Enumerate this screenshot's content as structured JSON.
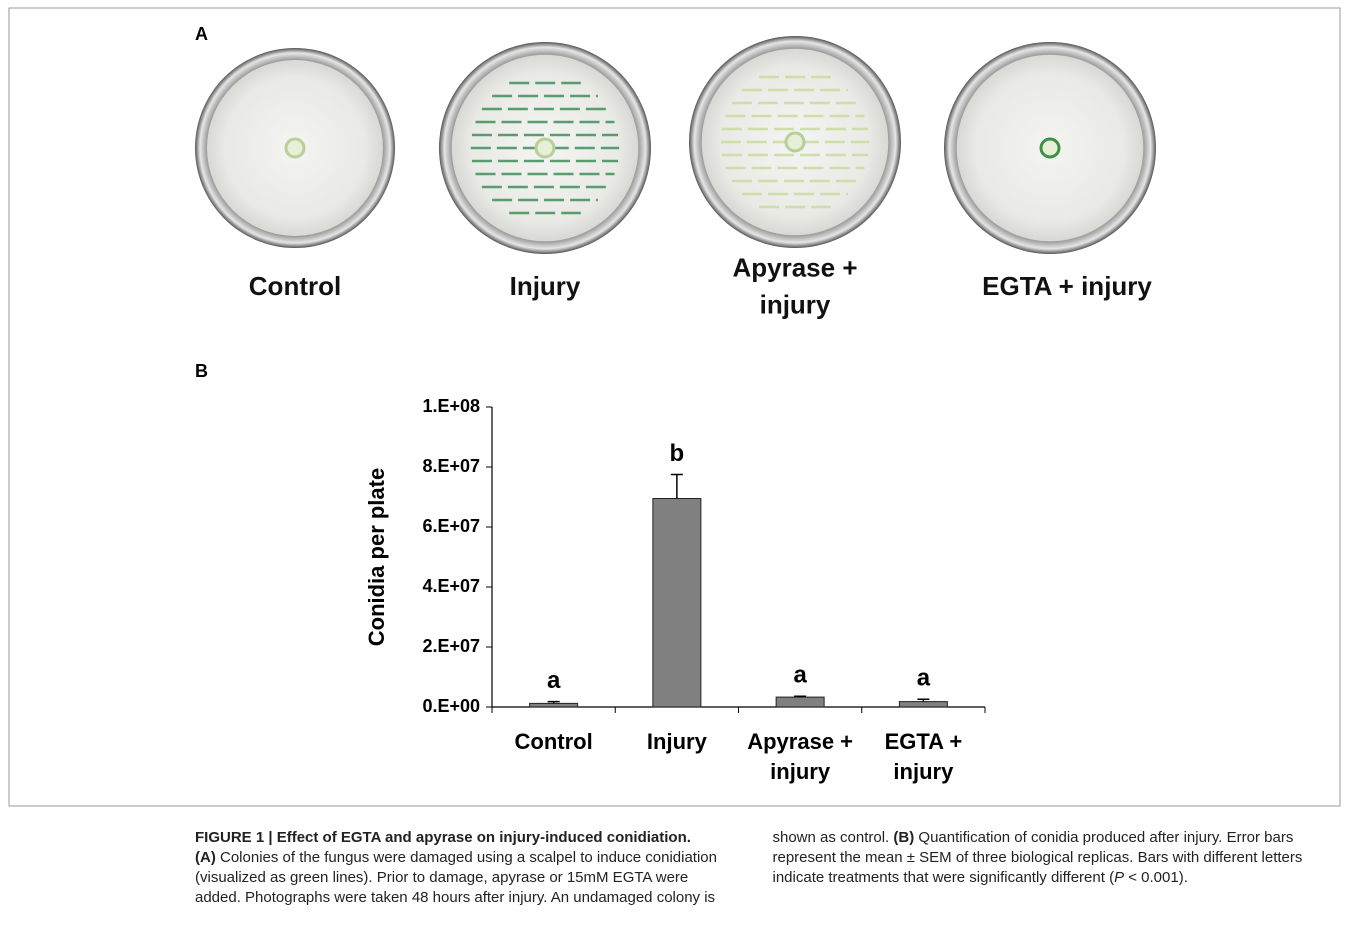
{
  "panel_a": {
    "label": "A",
    "plates": [
      "Control",
      "Injury",
      "Apyrase +\ninjury",
      "EGTA + injury"
    ]
  },
  "panel_b": {
    "label": "B"
  },
  "chart_data": {
    "type": "bar",
    "ylabel": "Conidia per plate",
    "categories": [
      "Control",
      "Injury",
      "Apyrase +\ninjury",
      "EGTA +\ninjury"
    ],
    "values": [
      1200000,
      69500000,
      3300000,
      1800000
    ],
    "errors": [
      600000,
      8000000,
      300000,
      800000
    ],
    "annotations": [
      "a",
      "b",
      "a",
      "a"
    ],
    "color": "#808080",
    "ylim": [
      0,
      100000000
    ],
    "yticks": [
      {
        "value": 0,
        "label": "0.E+00"
      },
      {
        "value": 20000000,
        "label": "2.E+07"
      },
      {
        "value": 40000000,
        "label": "4.E+07"
      },
      {
        "value": 60000000,
        "label": "6.E+07"
      },
      {
        "value": 80000000,
        "label": "8.E+07"
      },
      {
        "value": 100000000,
        "label": "1.E+08"
      }
    ],
    "grid": false
  },
  "caption": {
    "parts": [
      "FIGURE 1 | Effect of EGTA and apyrase on injury-induced conidiation.",
      "(A)",
      " Colonies of the fungus were damaged using a scalpel to induce conidiation (visualized as green lines). Prior to damage, apyrase or 15mM EGTA were added. Photographs were taken 48 hours after injury. An undamaged colony is shown as control. ",
      "(B)",
      " Quantification of conidia produced after injury. Error bars represent the mean ± SEM of three biological replicas. Bars with different letters indicate treatments that were significantly different (",
      "P",
      " < 0.001)."
    ]
  }
}
